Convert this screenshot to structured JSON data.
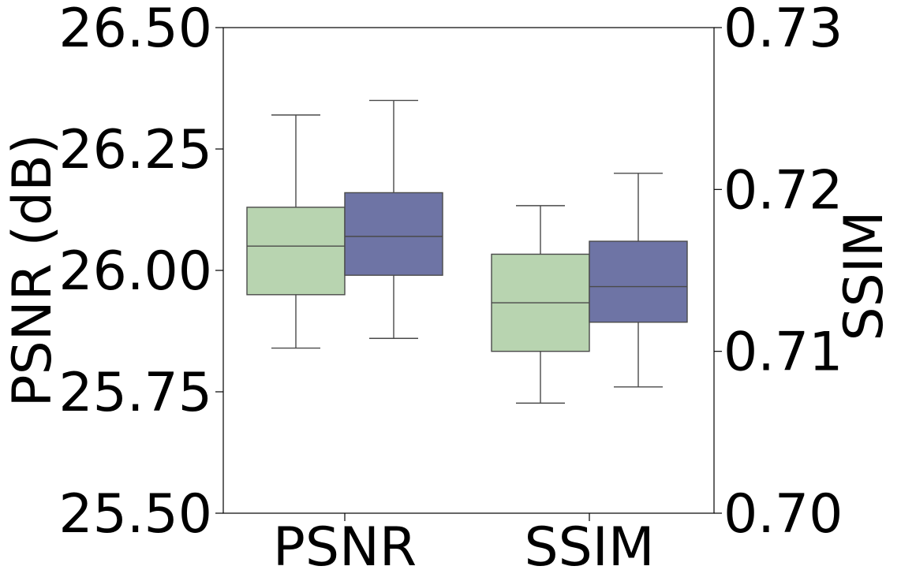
{
  "chart_data": {
    "type": "box",
    "categories": [
      "PSNR",
      "SSIM"
    ],
    "left_axis": {
      "label": "PSNR (dB)",
      "ylim": [
        25.5,
        26.5
      ],
      "ticks": [
        "25.50",
        "25.75",
        "26.00",
        "26.25",
        "26.50"
      ]
    },
    "right_axis": {
      "label": "SSIM",
      "ylim": [
        0.7,
        0.73
      ],
      "ticks": [
        "0.70",
        "0.71",
        "0.72",
        "0.73"
      ]
    },
    "series": [
      {
        "color": "#b8d4b0",
        "boxes": [
          {
            "category": "PSNR",
            "axis": "left",
            "min": 25.84,
            "q1": 25.95,
            "median": 26.05,
            "q3": 26.13,
            "max": 26.32
          },
          {
            "category": "SSIM",
            "axis": "right",
            "min": 0.7068,
            "q1": 0.71,
            "median": 0.713,
            "q3": 0.716,
            "max": 0.719
          }
        ]
      },
      {
        "color": "#6e74a5",
        "boxes": [
          {
            "category": "PSNR",
            "axis": "left",
            "min": 25.86,
            "q1": 25.99,
            "median": 26.07,
            "q3": 26.16,
            "max": 26.35
          },
          {
            "category": "SSIM",
            "axis": "right",
            "min": 0.7078,
            "q1": 0.7118,
            "median": 0.714,
            "q3": 0.7168,
            "max": 0.721
          }
        ]
      }
    ],
    "grid": false,
    "legend": "none"
  }
}
